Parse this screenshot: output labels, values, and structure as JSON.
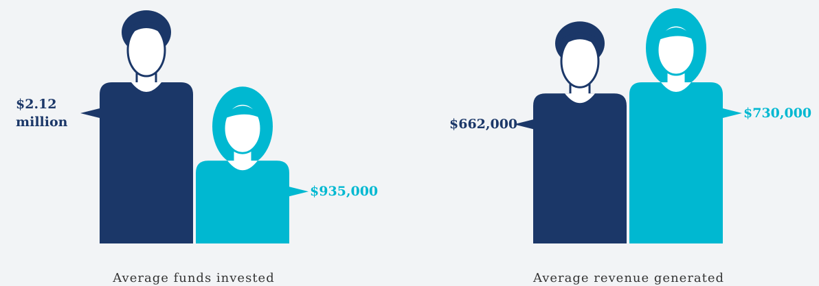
{
  "chart_data": [
    {
      "type": "pictograph",
      "title": "Average funds invested",
      "values": [
        2120000,
        935000
      ],
      "value_labels": [
        "$2.12 million",
        "$935,000"
      ],
      "colors": [
        "#1b3768",
        "#00b8d1"
      ]
    },
    {
      "type": "pictograph",
      "title": "Average revenue generated",
      "values": [
        662000,
        730000
      ],
      "value_labels": [
        "$662,000",
        "$730,000"
      ],
      "colors": [
        "#1b3768",
        "#00b8d1"
      ]
    }
  ]
}
